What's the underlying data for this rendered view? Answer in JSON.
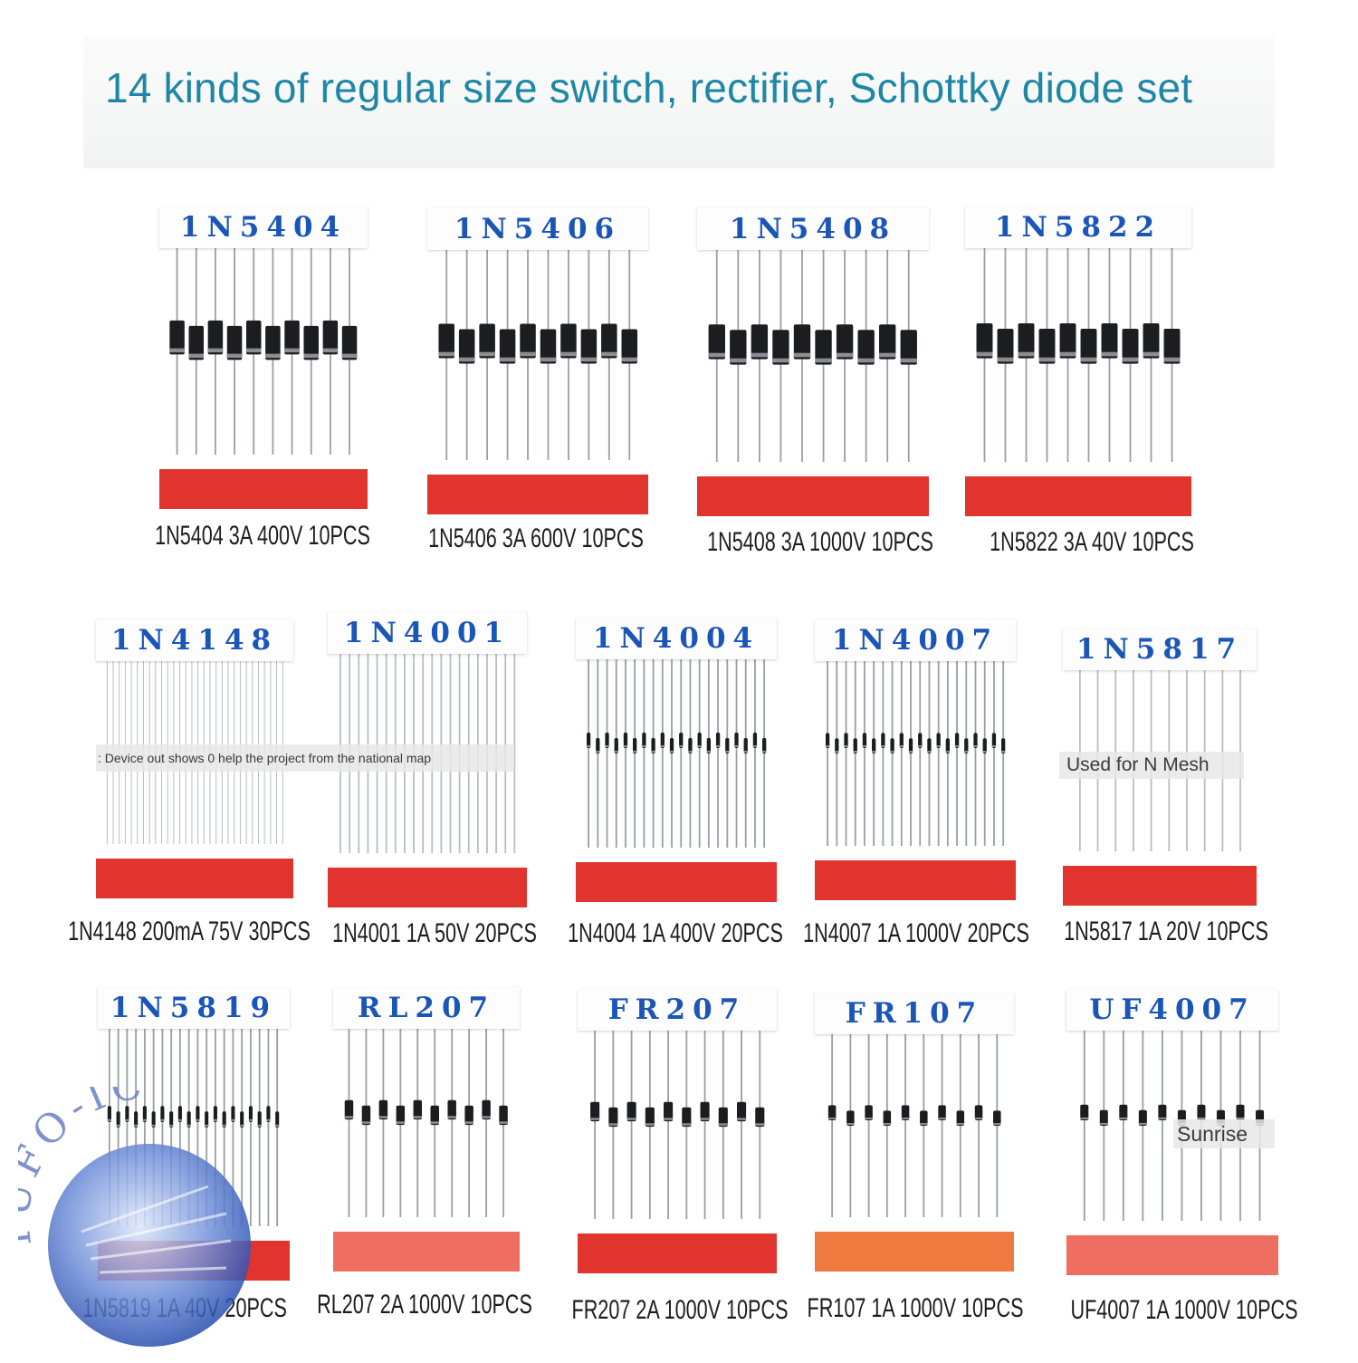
{
  "title": "14 kinds of regular size switch, rectifier, Schottky diode set",
  "overlays": {
    "left": ": Device out shows 0 help the project from the national map",
    "mesh": "Used for N Mesh",
    "sunrise": "Sunrise"
  },
  "logo_text": "YUFO-IC",
  "packs": [
    {
      "label": "1N5404",
      "caption": "1N5404 3A 400V 10PCS",
      "count": 10,
      "body": "large",
      "tape": "#e2342e"
    },
    {
      "label": "1N5406",
      "caption": "1N5406 3A 600V 10PCS",
      "count": 10,
      "body": "large",
      "tape": "#e2342e"
    },
    {
      "label": "1N5408",
      "caption": "1N5408 3A 1000V 10PCS",
      "count": 10,
      "body": "large",
      "tape": "#e2342e"
    },
    {
      "label": "1N5822",
      "caption": "1N5822 3A 40V 10PCS",
      "count": 10,
      "body": "large",
      "tape": "#e2342e"
    },
    {
      "label": "1N4148",
      "caption": "1N4148 200mA 75V 30PCS",
      "count": 30,
      "body": "glass",
      "tape": "#e2342e"
    },
    {
      "label": "1N4001",
      "caption": "1N4001 1A 50V 20PCS",
      "count": 20,
      "body": "glass",
      "tape": "#e2342e"
    },
    {
      "label": "1N4004",
      "caption": "1N4004 1A 400V 20PCS",
      "count": 20,
      "body": "small",
      "tape": "#e2342e"
    },
    {
      "label": "1N4007",
      "caption": "1N4007 1A 1000V 20PCS",
      "count": 20,
      "body": "small",
      "tape": "#e2342e"
    },
    {
      "label": "1N5817",
      "caption": "1N5817 1A 20V 10PCS",
      "count": 10,
      "body": "glass",
      "tape": "#e2342e"
    },
    {
      "label": "1N5819",
      "caption": "1N5819 1A 40V 20PCS",
      "count": 20,
      "body": "small",
      "tape": "#e2342e"
    },
    {
      "label": "RL207",
      "caption": "RL207 2A 1000V 10PCS",
      "count": 10,
      "body": "medium",
      "tape": "#ee6f62"
    },
    {
      "label": "FR207",
      "caption": "FR207 2A 1000V 10PCS",
      "count": 10,
      "body": "medium",
      "tape": "#e2342e"
    },
    {
      "label": "FR107",
      "caption": "FR107 1A 1000V 10PCS",
      "count": 10,
      "body": "small",
      "tape": "#ef7a3f"
    },
    {
      "label": "UF4007",
      "caption": "UF4007 1A 1000V 10PCS",
      "count": 10,
      "body": "small",
      "tape": "#ee6f62"
    }
  ]
}
